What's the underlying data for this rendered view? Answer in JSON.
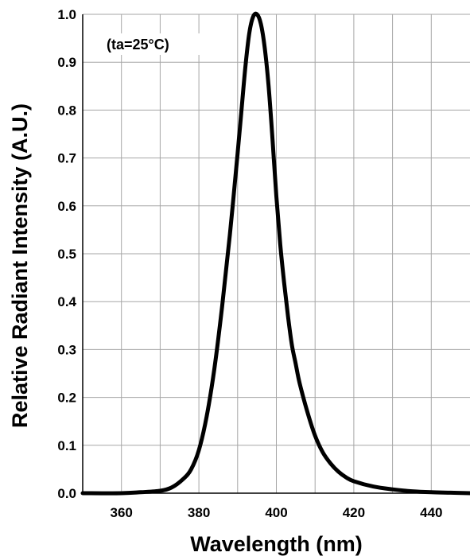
{
  "chart_data": {
    "type": "line",
    "title": "",
    "xlabel": "Wavelength (nm)",
    "ylabel": "Relative Radiant Intensity (A.U.)",
    "annotation": "(ta=25°C)",
    "xlim": [
      350,
      450
    ],
    "ylim": [
      0,
      1
    ],
    "x_ticks": [
      360,
      380,
      400,
      420,
      440
    ],
    "x_tick_labels": [
      "360",
      "380",
      "400",
      "420",
      "440"
    ],
    "x_grid": [
      360,
      370,
      380,
      390,
      400,
      410,
      420,
      430,
      440
    ],
    "y_ticks": [
      0,
      0.1,
      0.2,
      0.3,
      0.4,
      0.5,
      0.6,
      0.7,
      0.8,
      0.9,
      1.0
    ],
    "y_tick_labels": [
      "0.0",
      "0.1",
      "0.2",
      "0.3",
      "0.4",
      "0.5",
      "0.6",
      "0.7",
      "0.8",
      "0.9",
      "1.0"
    ],
    "grid": true,
    "line_color": "#000000",
    "grid_color": "#a6a6a6",
    "series": [
      {
        "x": [
          350,
          360,
          365,
          370,
          373,
          376,
          378,
          380,
          382,
          384,
          386,
          388,
          390,
          391,
          392,
          393,
          394,
          395,
          396,
          397,
          398,
          399,
          400,
          401,
          402,
          403,
          404,
          405,
          406,
          408,
          410,
          412,
          414,
          416,
          418,
          420,
          425,
          430,
          435,
          440,
          445,
          450
        ],
        "y": [
          0.0,
          0.0,
          0.002,
          0.005,
          0.012,
          0.03,
          0.05,
          0.09,
          0.16,
          0.26,
          0.39,
          0.54,
          0.71,
          0.8,
          0.89,
          0.96,
          0.995,
          1.0,
          0.98,
          0.93,
          0.85,
          0.74,
          0.62,
          0.52,
          0.44,
          0.37,
          0.31,
          0.27,
          0.23,
          0.17,
          0.12,
          0.085,
          0.062,
          0.045,
          0.033,
          0.025,
          0.014,
          0.008,
          0.004,
          0.002,
          0.001,
          0.0
        ]
      }
    ]
  }
}
